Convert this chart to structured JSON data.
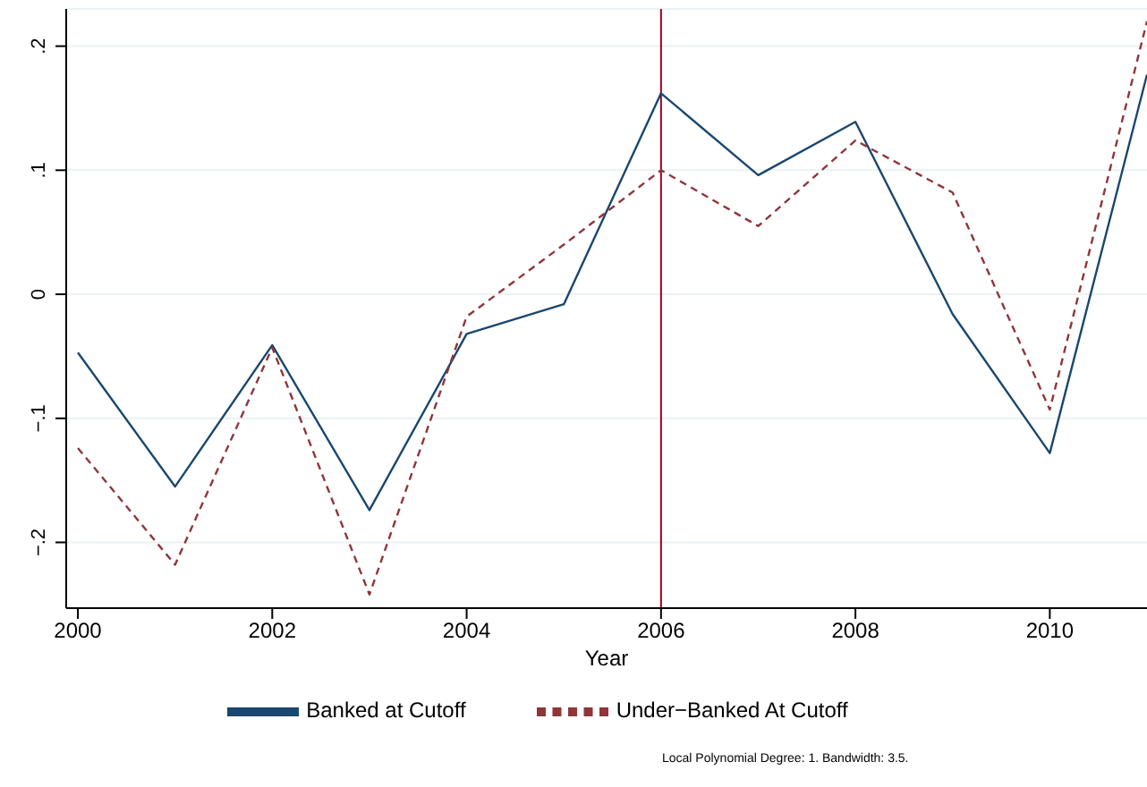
{
  "chart_data": {
    "type": "line",
    "xlabel": "Year",
    "x": [
      2000,
      2001,
      2002,
      2003,
      2004,
      2005,
      2006,
      2007,
      2008,
      2009,
      2010,
      2011
    ],
    "series": [
      {
        "name": "Banked at Cutoff",
        "color": "#1a476f",
        "line_style": "solid",
        "values": [
          -0.047,
          -0.155,
          -0.041,
          -0.174,
          -0.032,
          -0.008,
          0.162,
          0.096,
          0.139,
          -0.016,
          -0.128,
          0.177
        ]
      },
      {
        "name": "Under−Banked At Cutoff",
        "color": "#90353b",
        "line_style": "dashed",
        "values": [
          -0.124,
          -0.218,
          -0.043,
          -0.242,
          -0.018,
          0.04,
          0.1,
          0.055,
          0.124,
          0.082,
          -0.093,
          0.22
        ]
      }
    ],
    "xlim": [
      1999.88,
      2011
    ],
    "xticks": [
      2000,
      2002,
      2004,
      2006,
      2008,
      2010
    ],
    "ylim": [
      -0.253,
      0.23
    ],
    "yticks": [
      {
        "value": -0.2,
        "label": "−.2"
      },
      {
        "value": -0.1,
        "label": "−.1"
      },
      0,
      {
        "value": 0.1,
        "label": ".1"
      },
      {
        "value": 0.2,
        "label": ".2"
      }
    ],
    "ref_lines": [
      {
        "axis": "x",
        "value": 2006,
        "color": "#990022"
      }
    ],
    "grid": "y",
    "legend": "bottom",
    "marker": "none",
    "annotations": [
      "Local Polynomial Degree: 1. Bandwidth: 3.5."
    ]
  }
}
